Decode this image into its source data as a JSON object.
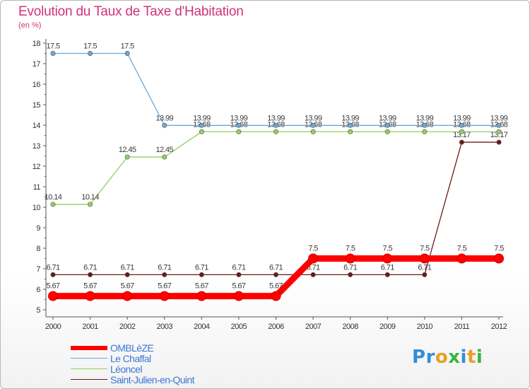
{
  "title": "Evolution du Taux de Taxe d'Habitation",
  "subtitle": "(en %)",
  "logo_text": "Proxiti",
  "chart_data": {
    "type": "line",
    "title": "Evolution du Taux de Taxe d'Habitation",
    "ylabel": "(en %)",
    "xlabel": "",
    "ylim": [
      5,
      18
    ],
    "x": [
      "2000",
      "2001",
      "2002",
      "2003",
      "2004",
      "2005",
      "2006",
      "2007",
      "2008",
      "2009",
      "2010",
      "2011",
      "2012"
    ],
    "y_ticks": [
      "5",
      "6",
      "7",
      "8",
      "9",
      "10",
      "11",
      "12",
      "13",
      "14",
      "15",
      "16",
      "17",
      "18"
    ],
    "series": [
      {
        "name": "Saint-Julien-en-Quint",
        "color": "#6b1a1a",
        "values": [
          6.71,
          6.71,
          6.71,
          6.71,
          6.71,
          6.71,
          6.71,
          6.71,
          6.71,
          6.71,
          6.71,
          13.17,
          13.17
        ],
        "labels": [
          "6.71",
          "6.71",
          "6.71",
          "6.71",
          "6.71",
          "6.71",
          "6.71",
          "6.71",
          "6.71",
          "6.71",
          "6.71",
          "13.17",
          "13.17"
        ]
      },
      {
        "name": "Léoncel",
        "color": "#90d060",
        "values": [
          10.14,
          10.14,
          12.45,
          12.45,
          13.68,
          13.68,
          13.68,
          13.68,
          13.68,
          13.68,
          13.68,
          13.68,
          13.68
        ],
        "labels": [
          "10.14",
          "10.14",
          "12.45",
          "12.45",
          "13.68",
          "13.68",
          "13.68",
          "13.68",
          "13.68",
          "13.68",
          "13.68",
          "13.68",
          "13.68"
        ]
      },
      {
        "name": "Le Chaffal",
        "color": "#6aa8d8",
        "values": [
          17.5,
          17.5,
          17.5,
          13.99,
          13.99,
          13.99,
          13.99,
          13.99,
          13.99,
          13.99,
          13.99,
          13.99,
          13.99
        ],
        "labels": [
          "17.5",
          "17.5",
          "17.5",
          "13.99",
          "13.99",
          "13.99",
          "13.99",
          "13.99",
          "13.99",
          "13.99",
          "13.99",
          "13.99",
          "13.99"
        ]
      },
      {
        "name": "OMBLèZE",
        "color": "#ff0000",
        "values": [
          5.67,
          5.67,
          5.67,
          5.67,
          5.67,
          5.67,
          5.67,
          7.5,
          7.5,
          7.5,
          7.5,
          7.5,
          7.5
        ],
        "labels": [
          "5.67",
          "5.67",
          "5.67",
          "5.67",
          "5.67",
          "5.67",
          "5.67",
          "7.5",
          "7.5",
          "7.5",
          "7.5",
          "7.5",
          "7.5"
        ]
      }
    ],
    "legend": [
      "OMBLèZE",
      "Le Chaffal",
      "Léoncel",
      "Saint-Julien-en-Quint"
    ],
    "legend_position": "bottom-left"
  }
}
